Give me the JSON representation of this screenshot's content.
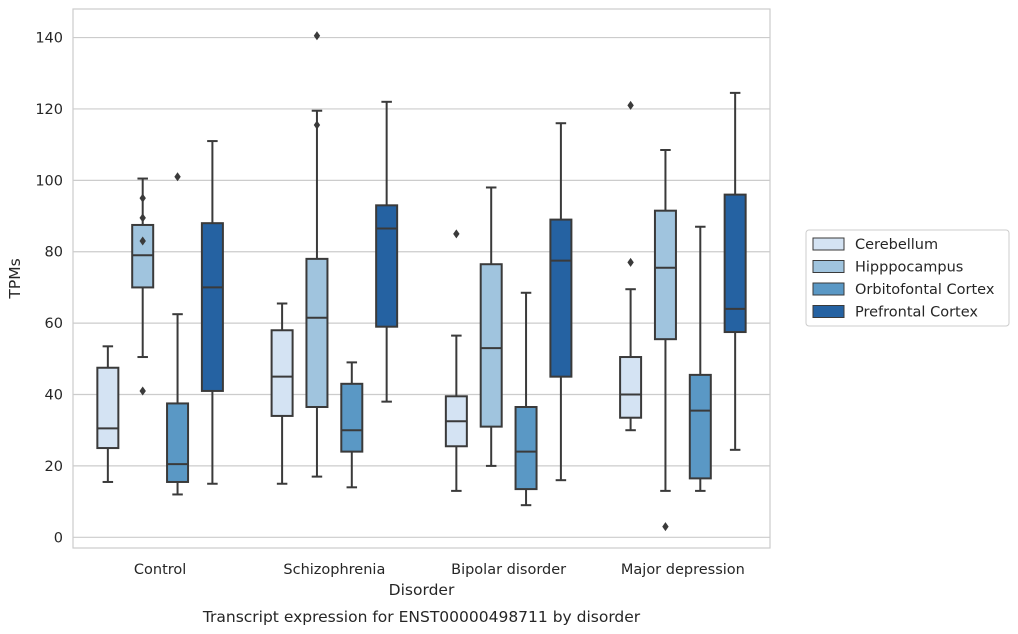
{
  "chart_data": {
    "type": "boxplot",
    "caption": "Transcript expression for ENST00000498711 by disorder",
    "xlabel": "Disorder",
    "ylabel": "TPMs",
    "ylim": [
      -3,
      148
    ],
    "yticks": [
      0,
      20,
      40,
      60,
      80,
      100,
      120,
      140
    ],
    "grid": "horizontal",
    "legend_position": "right",
    "categories": [
      "Control",
      "Schizophrenia",
      "Bipolar disorder",
      "Major depression"
    ],
    "series": [
      {
        "name": "Cerebellum",
        "color": "#d4e3f3",
        "boxes": [
          {
            "whisker_low": 15.5,
            "q1": 25,
            "median": 30.5,
            "q3": 47.5,
            "whisker_high": 53.5,
            "outliers": []
          },
          {
            "whisker_low": 15,
            "q1": 34,
            "median": 45,
            "q3": 58,
            "whisker_high": 65.5,
            "outliers": []
          },
          {
            "whisker_low": 13,
            "q1": 25.5,
            "median": 32.5,
            "q3": 39.5,
            "whisker_high": 56.5,
            "outliers": [
              85
            ]
          },
          {
            "whisker_low": 30,
            "q1": 33.5,
            "median": 40,
            "q3": 50.5,
            "whisker_high": 69.5,
            "outliers": [
              77,
              121
            ]
          }
        ]
      },
      {
        "name": "Hipppocampus",
        "color": "#a0c4de",
        "boxes": [
          {
            "whisker_low": 50.5,
            "q1": 70,
            "median": 79,
            "q3": 87.5,
            "whisker_high": 100.5,
            "outliers": [
              41,
              83,
              89.5,
              95
            ]
          },
          {
            "whisker_low": 17,
            "q1": 36.5,
            "median": 61.5,
            "q3": 78,
            "whisker_high": 119.5,
            "outliers": [
              115.5,
              140.5
            ]
          },
          {
            "whisker_low": 20,
            "q1": 31,
            "median": 53,
            "q3": 76.5,
            "whisker_high": 98,
            "outliers": []
          },
          {
            "whisker_low": 13,
            "q1": 55.5,
            "median": 75.5,
            "q3": 91.5,
            "whisker_high": 108.5,
            "outliers": [
              3
            ]
          }
        ]
      },
      {
        "name": "Orbitofontal Cortex",
        "color": "#5a98c5",
        "boxes": [
          {
            "whisker_low": 12,
            "q1": 15.5,
            "median": 20.5,
            "q3": 37.5,
            "whisker_high": 62.5,
            "outliers": [
              101
            ]
          },
          {
            "whisker_low": 14,
            "q1": 24,
            "median": 30,
            "q3": 43,
            "whisker_high": 49,
            "outliers": []
          },
          {
            "whisker_low": 9,
            "q1": 13.5,
            "median": 24,
            "q3": 36.5,
            "whisker_high": 68.5,
            "outliers": []
          },
          {
            "whisker_low": 13,
            "q1": 16.5,
            "median": 35.5,
            "q3": 45.5,
            "whisker_high": 87,
            "outliers": []
          }
        ]
      },
      {
        "name": "Prefrontal Cortex",
        "color": "#2562a2",
        "boxes": [
          {
            "whisker_low": 15,
            "q1": 41,
            "median": 70,
            "q3": 88,
            "whisker_high": 111,
            "outliers": []
          },
          {
            "whisker_low": 38,
            "q1": 59,
            "median": 86.5,
            "q3": 93,
            "whisker_high": 122,
            "outliers": []
          },
          {
            "whisker_low": 16,
            "q1": 45,
            "median": 77.5,
            "q3": 89,
            "whisker_high": 116,
            "outliers": []
          },
          {
            "whisker_low": 24.5,
            "q1": 57.5,
            "median": 64,
            "q3": 96,
            "whisker_high": 124.5,
            "outliers": []
          }
        ]
      }
    ]
  }
}
